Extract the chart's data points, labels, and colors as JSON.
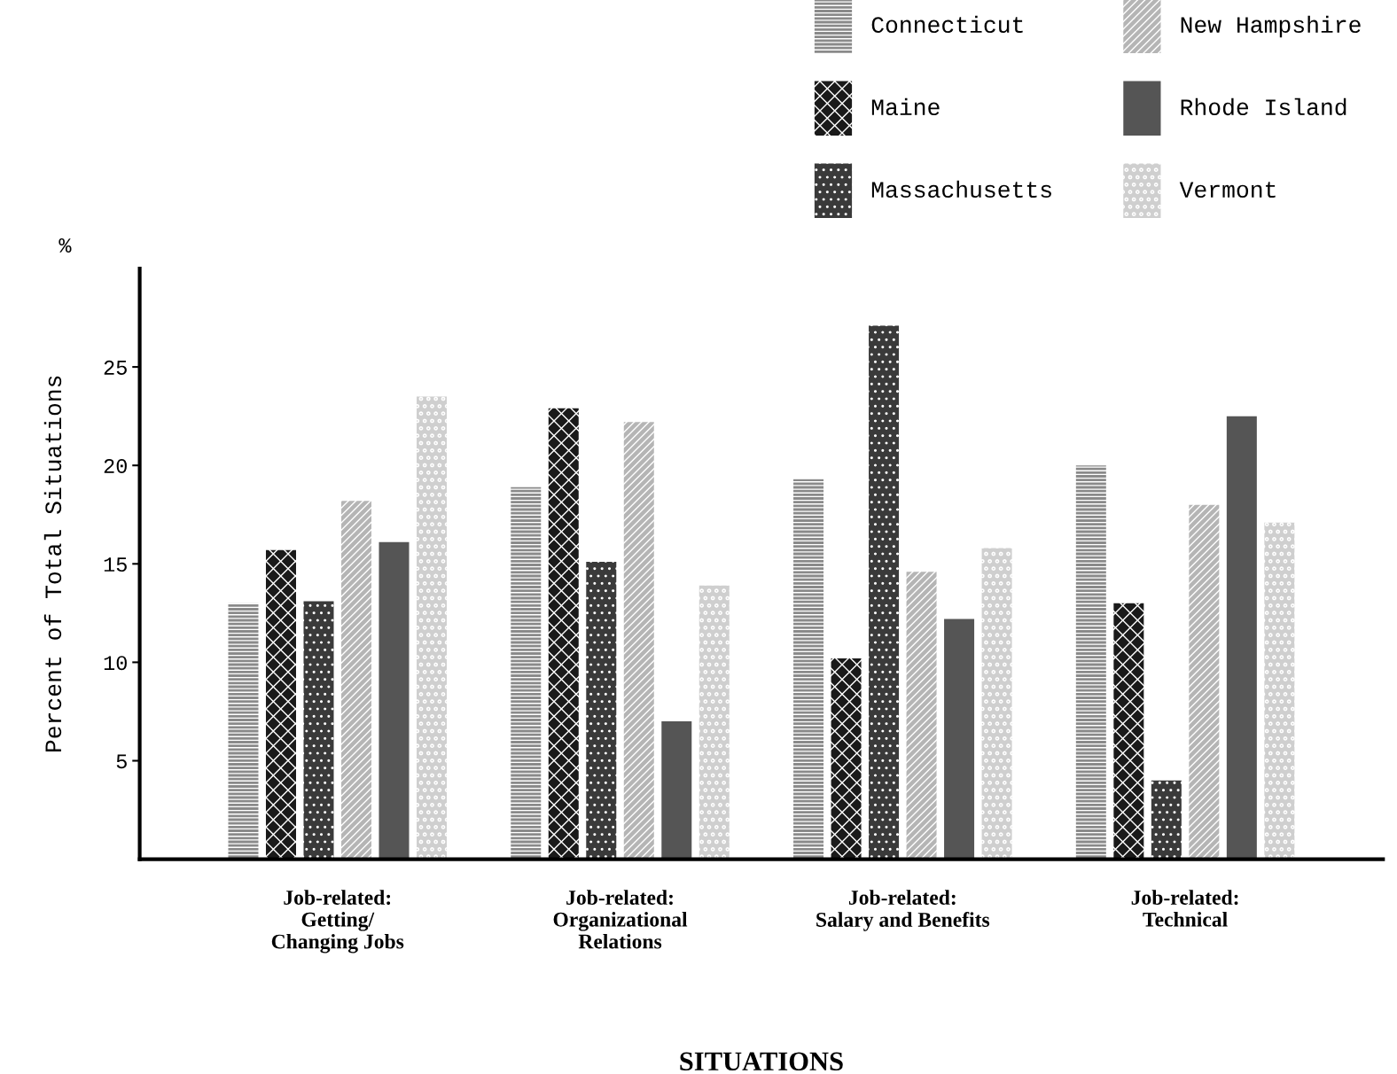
{
  "chart_data": {
    "type": "bar",
    "xlabel": "SITUATIONS",
    "ylabel": "Percent of Total Situations",
    "annotations": [
      "%"
    ],
    "categories": [
      "Job-related:\nGetting/\nChanging Jobs",
      "Job-related:\nOrganizational\nRelations",
      "Job-related:\nSalary and Benefits",
      "Job-related:\nTechnical"
    ],
    "series": [
      {
        "name": "Connecticut",
        "color": "#8a8a8a",
        "values": [
          13.0,
          18.9,
          19.3,
          20.0
        ]
      },
      {
        "name": "Maine",
        "color": "#1a1a1a",
        "values": [
          15.7,
          22.9,
          10.2,
          13.0
        ]
      },
      {
        "name": "Massachusetts",
        "color": "#3a3a3a",
        "values": [
          13.1,
          15.1,
          27.1,
          4.0
        ]
      },
      {
        "name": "New Hampshire",
        "color": "#b5b5b5",
        "values": [
          18.2,
          22.2,
          14.6,
          18.0
        ]
      },
      {
        "name": "Rhode Island",
        "color": "#555555",
        "values": [
          16.1,
          7.0,
          12.2,
          22.5
        ]
      },
      {
        "name": "Vermont",
        "color": "#cfcfcf",
        "values": [
          23.5,
          13.9,
          15.8,
          17.1
        ]
      }
    ],
    "ylim": [
      0,
      30
    ],
    "yticks": [
      5,
      10,
      15,
      20,
      25
    ],
    "grid": false,
    "legend": "top right"
  }
}
